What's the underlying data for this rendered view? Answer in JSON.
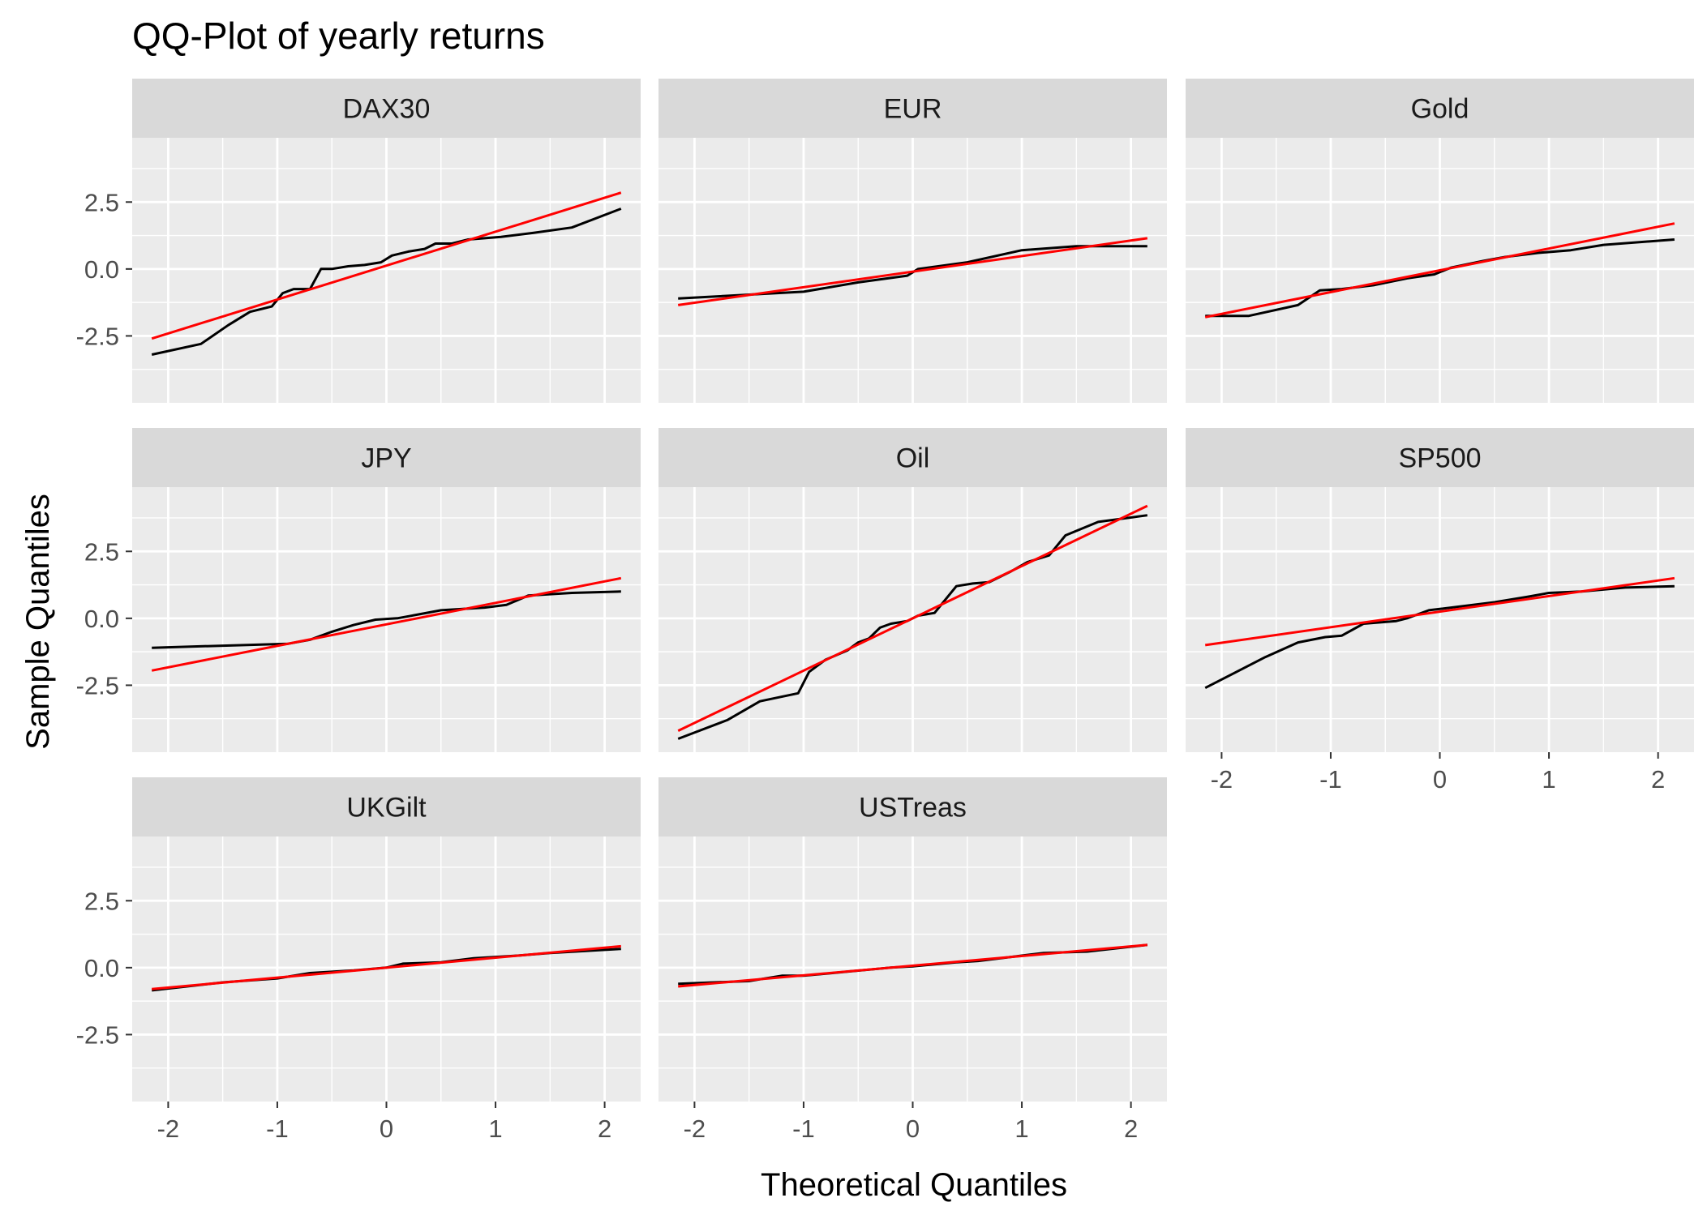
{
  "chart_data": {
    "type": "line",
    "title": "QQ-Plot of yearly returns",
    "xlabel": "Theoretical Quantiles",
    "ylabel": "Sample Quantiles",
    "xlim": [
      -2.33,
      2.33
    ],
    "ylim": [
      -5.0,
      4.9
    ],
    "x_ticks": [
      -2,
      -1,
      0,
      1,
      2
    ],
    "x_tick_labels": [
      "-2",
      "-1",
      "0",
      "1",
      "2"
    ],
    "y_ticks": [
      -2.5,
      0.0,
      2.5
    ],
    "y_tick_labels": [
      "-2.5",
      "0.0",
      "2.5"
    ],
    "grid": true,
    "legend": "none",
    "colors": {
      "sample_line": "#000000",
      "reference_line": "#ff0000",
      "panel_bg": "#ebebeb",
      "strip_bg": "#d9d9d9",
      "grid": "#ffffff"
    },
    "panels": [
      {
        "label": "DAX30",
        "sample": {
          "x": [
            -2.15,
            -1.7,
            -1.45,
            -1.25,
            -1.05,
            -0.95,
            -0.85,
            -0.7,
            -0.6,
            -0.5,
            -0.35,
            -0.2,
            -0.05,
            0.05,
            0.2,
            0.35,
            0.45,
            0.6,
            0.75,
            0.9,
            1.05,
            1.35,
            1.7,
            2.15
          ],
          "y": [
            -3.2,
            -2.8,
            -2.1,
            -1.6,
            -1.4,
            -0.9,
            -0.75,
            -0.75,
            0.0,
            0.0,
            0.1,
            0.15,
            0.25,
            0.5,
            0.65,
            0.75,
            0.95,
            0.95,
            1.1,
            1.15,
            1.2,
            1.35,
            1.55,
            2.25
          ]
        },
        "reference": {
          "x": [
            -2.15,
            2.15
          ],
          "y": [
            -2.6,
            2.85
          ]
        }
      },
      {
        "label": "EUR",
        "sample": {
          "x": [
            -2.15,
            -1.0,
            -0.5,
            -0.05,
            0.05,
            0.5,
            1.0,
            1.5,
            2.15
          ],
          "y": [
            -1.1,
            -0.85,
            -0.5,
            -0.25,
            0.0,
            0.25,
            0.7,
            0.85,
            0.85
          ]
        },
        "reference": {
          "x": [
            -2.15,
            2.15
          ],
          "y": [
            -1.35,
            1.15
          ]
        }
      },
      {
        "label": "Gold",
        "sample": {
          "x": [
            -2.15,
            -1.75,
            -1.3,
            -1.1,
            -0.9,
            -0.6,
            -0.3,
            -0.05,
            0.1,
            0.4,
            0.6,
            0.9,
            1.2,
            1.5,
            2.15
          ],
          "y": [
            -1.75,
            -1.75,
            -1.35,
            -0.8,
            -0.75,
            -0.6,
            -0.35,
            -0.2,
            0.05,
            0.3,
            0.45,
            0.6,
            0.7,
            0.9,
            1.1
          ]
        },
        "reference": {
          "x": [
            -2.15,
            2.15
          ],
          "y": [
            -1.8,
            1.7
          ]
        }
      },
      {
        "label": "JPY",
        "sample": {
          "x": [
            -2.15,
            -0.9,
            -0.7,
            -0.5,
            -0.3,
            -0.1,
            0.1,
            0.3,
            0.5,
            0.7,
            0.9,
            1.1,
            1.3,
            1.7,
            2.15
          ],
          "y": [
            -1.1,
            -0.95,
            -0.8,
            -0.5,
            -0.25,
            -0.05,
            0.0,
            0.15,
            0.3,
            0.35,
            0.4,
            0.5,
            0.85,
            0.95,
            1.0
          ]
        },
        "reference": {
          "x": [
            -2.15,
            2.15
          ],
          "y": [
            -1.95,
            1.5
          ]
        }
      },
      {
        "label": "Oil",
        "sample": {
          "x": [
            -2.15,
            -1.7,
            -1.4,
            -1.05,
            -0.95,
            -0.8,
            -0.6,
            -0.5,
            -0.4,
            -0.3,
            -0.2,
            -0.05,
            0.05,
            0.2,
            0.4,
            0.55,
            0.7,
            0.9,
            1.05,
            1.25,
            1.4,
            1.7,
            2.15
          ],
          "y": [
            -4.5,
            -3.8,
            -3.1,
            -2.8,
            -2.0,
            -1.55,
            -1.2,
            -0.9,
            -0.75,
            -0.35,
            -0.2,
            -0.1,
            0.1,
            0.2,
            1.2,
            1.3,
            1.35,
            1.75,
            2.1,
            2.35,
            3.1,
            3.6,
            3.85
          ]
        },
        "reference": {
          "x": [
            -2.15,
            2.15
          ],
          "y": [
            -4.2,
            4.2
          ]
        }
      },
      {
        "label": "SP500",
        "sample": {
          "x": [
            -2.15,
            -1.6,
            -1.3,
            -1.05,
            -0.9,
            -0.7,
            -0.4,
            -0.3,
            -0.1,
            0.0,
            0.5,
            0.8,
            1.0,
            1.3,
            1.7,
            2.15
          ],
          "y": [
            -2.6,
            -1.45,
            -0.9,
            -0.7,
            -0.65,
            -0.2,
            -0.1,
            0.0,
            0.3,
            0.35,
            0.6,
            0.8,
            0.95,
            1.0,
            1.15,
            1.2
          ]
        },
        "reference": {
          "x": [
            -2.15,
            2.15
          ],
          "y": [
            -1.0,
            1.5
          ]
        }
      },
      {
        "label": "UKGilt",
        "sample": {
          "x": [
            -2.15,
            -1.5,
            -1.0,
            -0.7,
            -0.3,
            0.0,
            0.15,
            0.5,
            0.8,
            1.2,
            1.5,
            2.15
          ],
          "y": [
            -0.85,
            -0.55,
            -0.4,
            -0.2,
            -0.1,
            0.0,
            0.15,
            0.2,
            0.35,
            0.45,
            0.55,
            0.7
          ]
        },
        "reference": {
          "x": [
            -2.15,
            2.15
          ],
          "y": [
            -0.8,
            0.8
          ]
        }
      },
      {
        "label": "USTreas",
        "sample": {
          "x": [
            -2.15,
            -1.5,
            -1.2,
            -1.0,
            -0.6,
            -0.2,
            0.0,
            0.4,
            0.6,
            1.0,
            1.2,
            1.6,
            2.15
          ],
          "y": [
            -0.6,
            -0.5,
            -0.3,
            -0.3,
            -0.15,
            0.0,
            0.05,
            0.2,
            0.25,
            0.45,
            0.55,
            0.6,
            0.85
          ]
        },
        "reference": {
          "x": [
            -2.15,
            2.15
          ],
          "y": [
            -0.7,
            0.85
          ]
        }
      }
    ]
  }
}
